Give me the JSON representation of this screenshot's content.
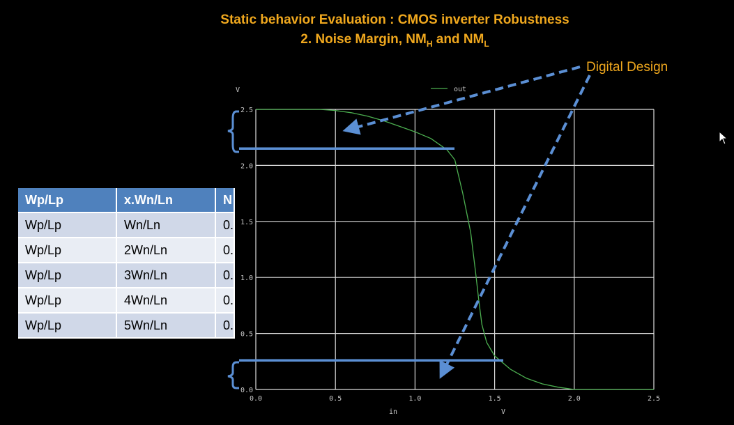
{
  "slide": {
    "title_line1": "Static behavior Evaluation : CMOS inverter Robustness",
    "title_line2_main": "2. Noise Margin, NM",
    "title_sub_h": "H",
    "title_and": " and NM",
    "title_sub_l": "L",
    "note_label": "Digital Design",
    "colors": {
      "title": "#f0a81e",
      "annotation": "#5b8fd4",
      "curve": "#4caf50"
    }
  },
  "table": {
    "headers": [
      "Wp/Lp",
      "x.Wn/Ln",
      "N"
    ],
    "rows": [
      [
        "Wp/Lp",
        "Wn/Ln",
        "0."
      ],
      [
        "Wp/Lp",
        "2Wn/Ln",
        "0."
      ],
      [
        "Wp/Lp",
        "3Wn/Ln",
        "0."
      ],
      [
        "Wp/Lp",
        "4Wn/Ln",
        "0."
      ],
      [
        "Wp/Lp",
        "5Wn/Ln",
        "0."
      ]
    ]
  },
  "chart_data": {
    "type": "line",
    "xlabel": "in",
    "xunit": "V",
    "yunit": "V",
    "xlim": [
      0,
      2.5
    ],
    "ylim": [
      0,
      2.5
    ],
    "x_ticks": [
      "0.0",
      "0.5",
      "1.0",
      "1.5",
      "2.0",
      "2.5"
    ],
    "y_ticks": [
      "0.0",
      "0.5",
      "1.0",
      "1.5",
      "2.0",
      "2.5"
    ],
    "grid": true,
    "legend_position": "top-center",
    "series": [
      {
        "name": "out",
        "x": [
          0,
          0.4,
          0.5,
          0.6,
          0.7,
          0.8,
          0.9,
          1.0,
          1.1,
          1.2,
          1.25,
          1.3,
          1.35,
          1.38,
          1.4,
          1.42,
          1.45,
          1.5,
          1.6,
          1.7,
          1.8,
          1.9,
          2.0,
          2.1,
          2.5
        ],
        "y": [
          2.5,
          2.5,
          2.49,
          2.47,
          2.44,
          2.4,
          2.35,
          2.3,
          2.24,
          2.14,
          2.05,
          1.75,
          1.4,
          1.05,
          0.8,
          0.58,
          0.42,
          0.3,
          0.18,
          0.1,
          0.05,
          0.02,
          0.0,
          0.0,
          0.0
        ]
      }
    ],
    "annotations": {
      "levels": [
        2.15,
        0.26
      ]
    }
  }
}
